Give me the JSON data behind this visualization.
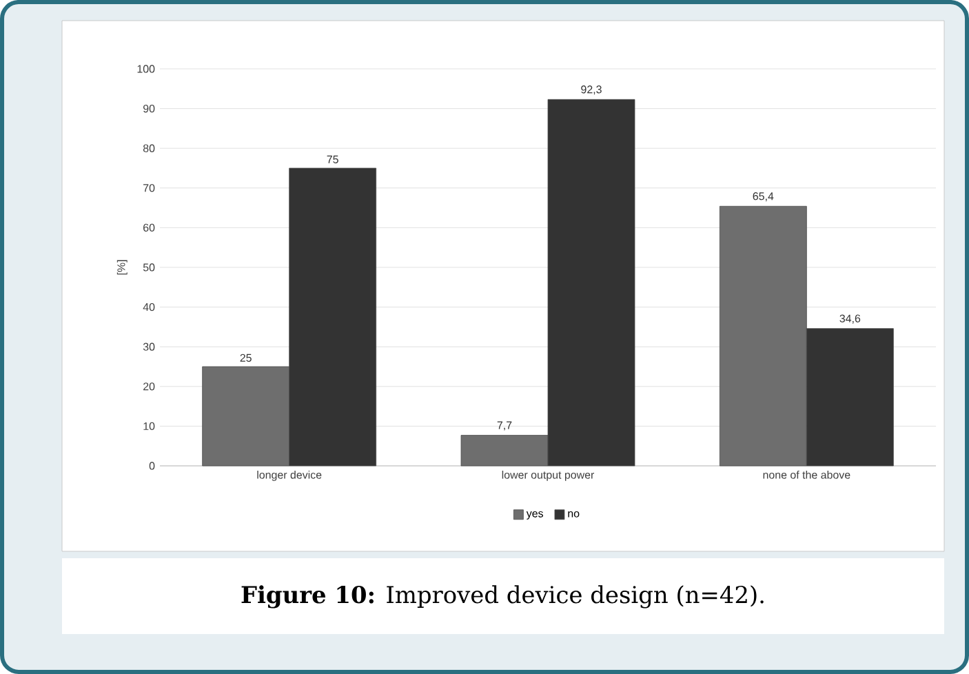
{
  "chart_data": {
    "type": "bar",
    "title": "**Figure 10:** Improved device design (n=42).",
    "ylabel": "[%]",
    "categories": [
      "longer device",
      "lower output power",
      "none of the above"
    ],
    "series": [
      {
        "name": "yes",
        "color": "#6e6e6e",
        "values": [
          25,
          7.7,
          65.4
        ],
        "value_labels": [
          "25",
          "7,7",
          "65,4"
        ]
      },
      {
        "name": "no",
        "color": "#333333",
        "values": [
          75,
          92.3,
          34.6
        ],
        "value_labels": [
          "75",
          "92,3",
          "34,6"
        ]
      }
    ],
    "ylim": [
      0,
      100
    ],
    "yticks": [
      0,
      10,
      20,
      30,
      40,
      50,
      60,
      70,
      80,
      90,
      100
    ],
    "grid": "y",
    "legend": "bottom"
  }
}
